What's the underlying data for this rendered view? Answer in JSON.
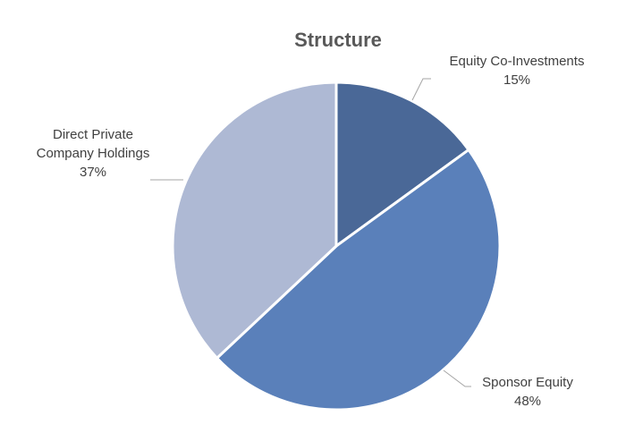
{
  "chart_data": {
    "type": "pie",
    "title": "Structure",
    "slices": [
      {
        "label": "Equity Co-Investments",
        "value": 15,
        "value_label": "15%",
        "color": "#4a6897"
      },
      {
        "label": "Sponsor Equity",
        "value": 48,
        "value_label": "48%",
        "color": "#5a80ba"
      },
      {
        "label": "Direct Private Company Holdings",
        "value": 37,
        "value_label": "37%",
        "color": "#aeb9d4"
      }
    ],
    "start_angle": "12 o'clock",
    "direction": "clockwise"
  }
}
